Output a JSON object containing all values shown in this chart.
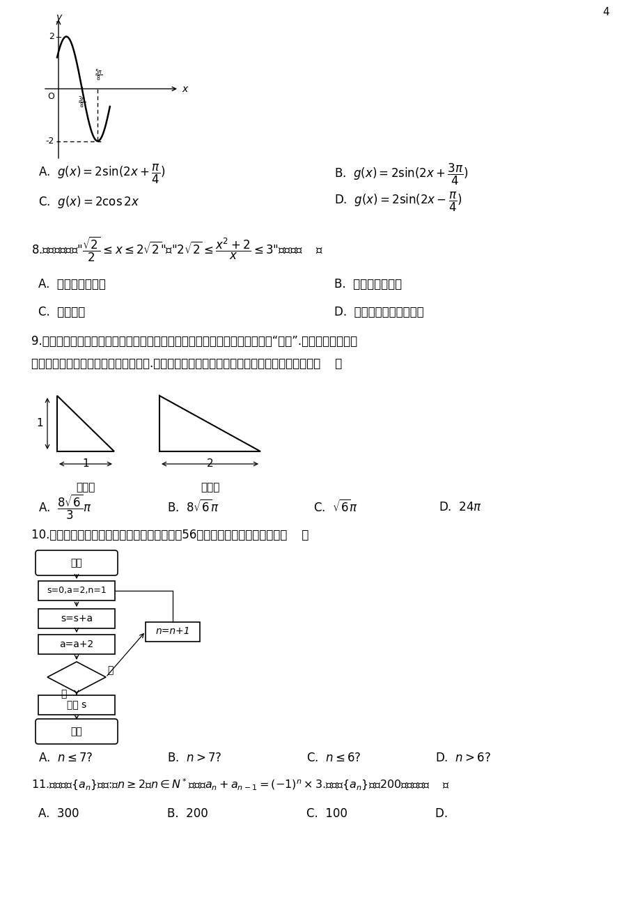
{
  "bg_color": "#ffffff",
  "page_num": "4",
  "q7_A": "A.  $g(x)=2\\sin(2x+\\dfrac{\\pi}{4})$",
  "q7_B": "B.  $g(x)=2\\sin(2x+\\dfrac{3\\pi}{4})$",
  "q7_C": "C.  $g(x)=2\\cos 2x$",
  "q7_D": "D.  $g(x)=2\\sin(2x-\\dfrac{\\pi}{4})$",
  "q8_A": "A.  充分不必要条件",
  "q8_B": "B.  必要不充分条件",
  "q8_C": "C.  充要条件",
  "q8_D": "D.  既不充分也不必要条件",
  "q9_line1": "9.《九章算术》中将底面为长方形，且有一条侧棱与底面垂直的四棱锥称之为“阳马”.现有一阳马，其正",
  "q9_line2": "视图和侧视图是如图所示的直角三角形.若该阳马的顶点都在同一个球面上，则该球的体积为（    ）",
  "q9_A": "A.  $\\dfrac{8\\sqrt{6}}{3}\\pi$",
  "q9_B": "B.  $8\\sqrt{6}\\pi$",
  "q9_C": "C.  $\\sqrt{6}\\pi$",
  "q9_D": "D.  $24\\pi$",
  "q10_line1": "10.执行如图所示的程序框图，若输出的结果为56，则判断框中的条件可以是（    ）",
  "q10_A": "A.  $n\\leq 7?$",
  "q10_B": "B.  $n>7?$",
  "q10_C": "C.  $n\\leq 6?$",
  "q10_D": "D.  $n>6?$",
  "q11_line1": "11.已知数列$\\{a_n\\}$满足:当$n\\geq 2$且$n\\in N^*$时，有$a_n+a_{n-1}=(-1)^n\\times 3$.则数列$\\{a_n\\}$的前200项的和为（    ）",
  "q11_A": "A.  300",
  "q11_B": "B.  200",
  "q11_C": "C.  100",
  "q11_D": "D.  "
}
